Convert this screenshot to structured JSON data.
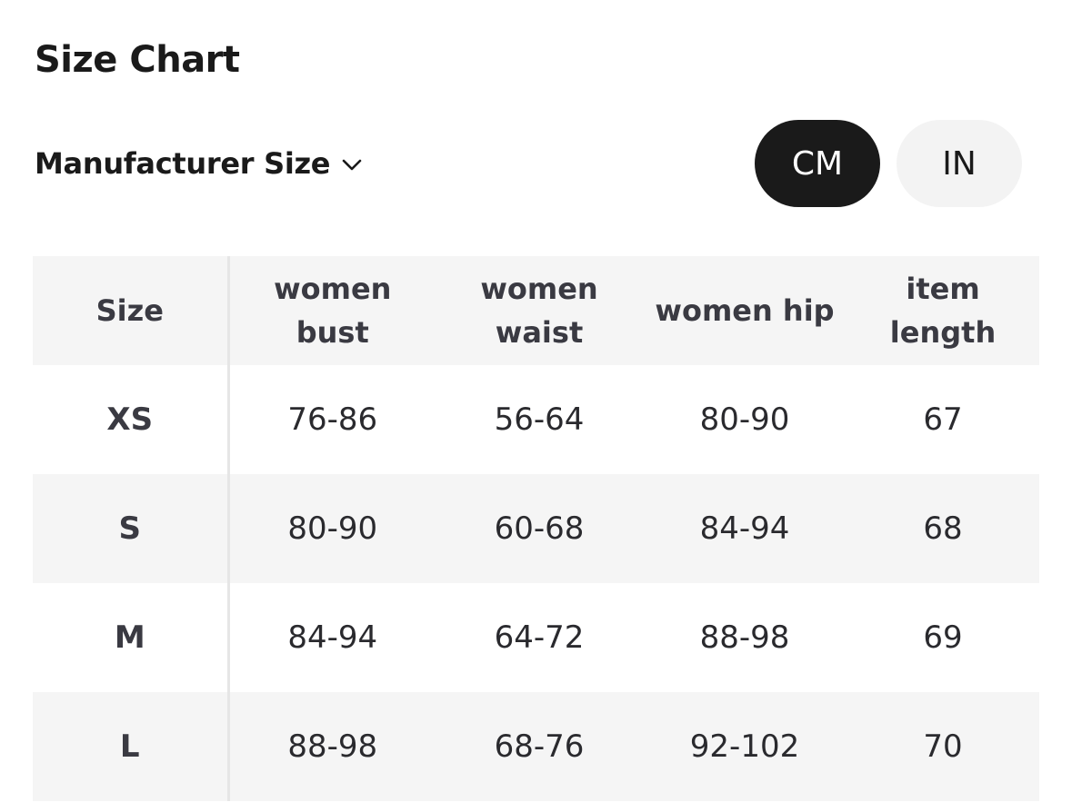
{
  "page": {
    "title": "Size Chart"
  },
  "controls": {
    "size_system_label": "Manufacturer Size",
    "size_system_icon": "chevron-down-icon",
    "units": [
      {
        "label": "CM",
        "selected": true
      },
      {
        "label": "IN",
        "selected": false
      }
    ]
  },
  "table": {
    "headers": [
      "Size",
      "women bust",
      "women waist",
      "women hip",
      "item length"
    ],
    "rows": [
      [
        "XS",
        "76-86",
        "56-64",
        "80-90",
        "67"
      ],
      [
        "S",
        "80-90",
        "60-68",
        "84-94",
        "68"
      ],
      [
        "M",
        "84-94",
        "64-72",
        "88-98",
        "69"
      ],
      [
        "L",
        "88-98",
        "68-76",
        "92-102",
        "70"
      ]
    ]
  },
  "colors": {
    "active_toggle_bg": "#1a1a1a",
    "inactive_toggle_bg": "#f3f3f3",
    "header_row_bg": "#f5f5f5",
    "striped_row_bg": "#f5f5f5"
  }
}
